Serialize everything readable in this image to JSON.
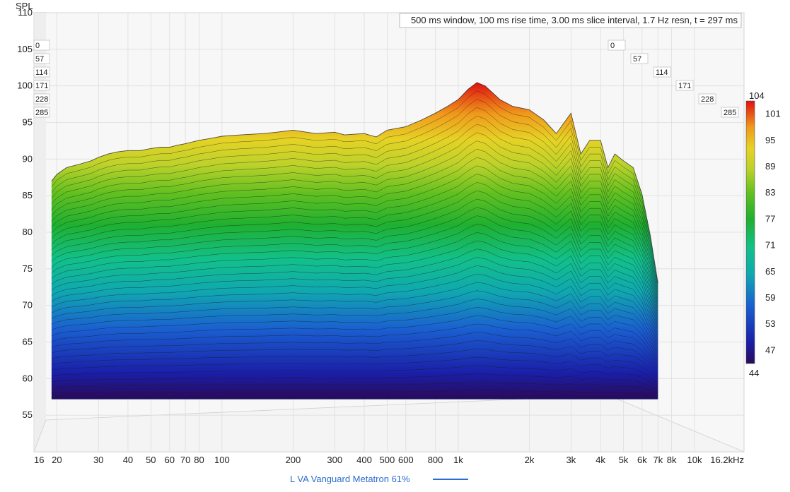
{
  "chart_data": {
    "type": "waterfall",
    "title": "500 ms window, 100 ms rise time, 3.00 ms slice interval, 1.7 Hz resn, t = 297 ms",
    "ylabel": "SPL",
    "xlabel": "",
    "x_unit": "kHz",
    "y_ticks": [
      55,
      60,
      65,
      70,
      75,
      80,
      85,
      90,
      95,
      100,
      105,
      110
    ],
    "ylim": [
      50,
      110
    ],
    "x_ticks": [
      "16",
      "20",
      "30",
      "40",
      "50",
      "60",
      "70",
      "80",
      "100",
      "200",
      "300",
      "400",
      "500",
      "600",
      "800",
      "1k",
      "2k",
      "3k",
      "4k",
      "5k",
      "6k",
      "7k",
      "8k",
      "10k",
      "16.2kHz"
    ],
    "x_tick_values": [
      16,
      20,
      30,
      40,
      50,
      60,
      70,
      80,
      100,
      200,
      300,
      400,
      500,
      600,
      800,
      1000,
      2000,
      3000,
      4000,
      5000,
      6000,
      7000,
      8000,
      10000,
      16200
    ],
    "time_labels": [
      "0",
      "57",
      "114",
      "171",
      "228",
      "285"
    ],
    "colorbar_labels": [
      "104",
      "101",
      "95",
      "89",
      "83",
      "77",
      "71",
      "65",
      "59",
      "53",
      "47",
      "44"
    ],
    "colorbar_range": [
      44,
      104
    ],
    "front_slice": {
      "freq": [
        19,
        20,
        22,
        25,
        28,
        30,
        33,
        36,
        40,
        45,
        50,
        55,
        60,
        65,
        70,
        80,
        90,
        100,
        120,
        150,
        170,
        200,
        250,
        300,
        330,
        400,
        450,
        500,
        600,
        700,
        800,
        900,
        1000,
        1100,
        1200,
        1300,
        1500,
        1700,
        2000,
        2300,
        2600,
        3000,
        3300,
        3600,
        4000,
        4300,
        4600,
        5000,
        5500,
        6000,
        6500,
        7000
      ],
      "spl": [
        90,
        91,
        92,
        92.5,
        93,
        93.5,
        94,
        94.3,
        94.5,
        94.5,
        94.8,
        95,
        95,
        95.3,
        95.5,
        96,
        96.3,
        96.6,
        96.8,
        97,
        97.2,
        97.5,
        97,
        97.2,
        96.8,
        97,
        96.5,
        97.5,
        98,
        99,
        100,
        101,
        102,
        103.5,
        104.5,
        104,
        102,
        101,
        100.5,
        99,
        97,
        100,
        94,
        96,
        96,
        92,
        94,
        93,
        92,
        88,
        82,
        75
      ]
    },
    "legend": [
      {
        "name": "L VA Vanguard Metatron 61%",
        "color": "#2b6cd0"
      }
    ],
    "grid": true,
    "colormap": "jet (blue to red)"
  }
}
